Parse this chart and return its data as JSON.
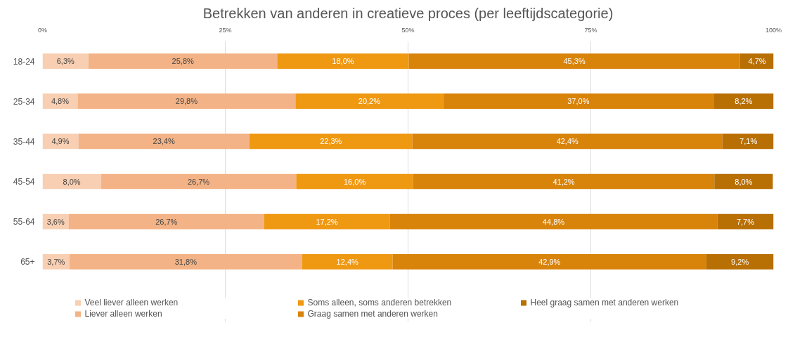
{
  "chart_data": {
    "type": "bar",
    "orientation": "horizontal",
    "stacked": true,
    "title": "Betrekken van anderen in creatieve proces (per leeftijdscategorie)",
    "categories": [
      "18-24",
      "25-34",
      "35-44",
      "45-54",
      "55-64",
      "65+"
    ],
    "xlim": [
      0,
      100
    ],
    "xticks": [
      {
        "value": 0,
        "label": "0%"
      },
      {
        "value": 25,
        "label": "25%"
      },
      {
        "value": 50,
        "label": "50%"
      },
      {
        "value": 75,
        "label": "75%"
      },
      {
        "value": 100,
        "label": "100%"
      }
    ],
    "grid": "x",
    "legend": "bottom",
    "series": [
      {
        "name": "Veel liever alleen werken",
        "color": "#f8cfb2",
        "values": [
          6.3,
          4.8,
          4.9,
          8.0,
          3.6,
          3.7
        ],
        "value_labels": [
          "6,3%",
          "4,8%",
          "4,9%",
          "8,0%",
          "3,6%",
          "3,7%"
        ]
      },
      {
        "name": "Liever alleen werken",
        "color": "#f3b386",
        "values": [
          25.8,
          29.8,
          23.4,
          26.7,
          26.7,
          31.8
        ],
        "value_labels": [
          "25,8%",
          "29,8%",
          "23,4%",
          "26,7%",
          "26,7%",
          "31,8%"
        ]
      },
      {
        "name": "Soms alleen, soms anderen betrekken",
        "color": "#ef9812",
        "values": [
          18.0,
          20.2,
          22.3,
          16.0,
          17.2,
          12.4
        ],
        "value_labels": [
          "18,0%",
          "20,2%",
          "22,3%",
          "16,0%",
          "17,2%",
          "12,4%"
        ]
      },
      {
        "name": "Graag samen met anderen werken",
        "color": "#d8830a",
        "values": [
          45.3,
          37.0,
          42.4,
          41.2,
          44.8,
          42.9
        ],
        "value_labels": [
          "45,3%",
          "37,0%",
          "42,4%",
          "41,2%",
          "44,8%",
          "42,9%"
        ]
      },
      {
        "name": "Heel graag samen met anderen werken",
        "color": "#b86f04",
        "values": [
          4.7,
          8.2,
          7.1,
          8.0,
          7.7,
          9.2
        ],
        "value_labels": [
          "4,7%",
          "8,2%",
          "7,1%",
          "8,0%",
          "7,7%",
          "9,2%"
        ]
      }
    ]
  }
}
